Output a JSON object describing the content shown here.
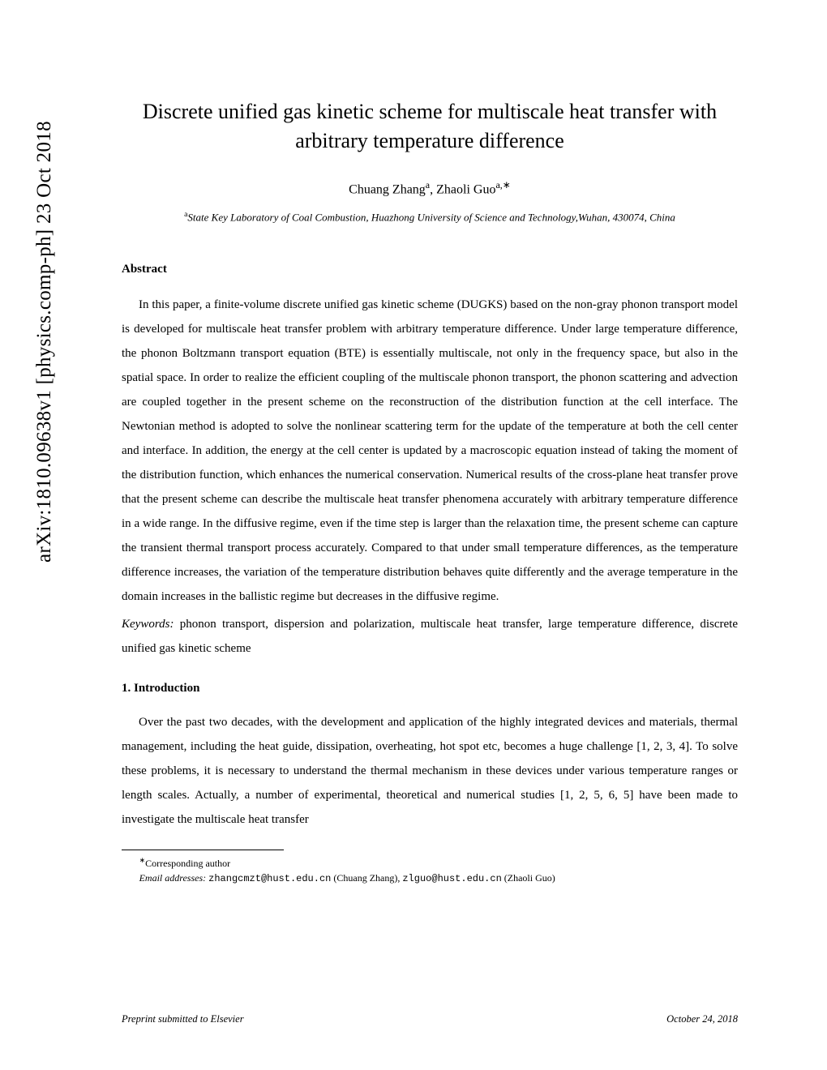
{
  "arxiv": "arXiv:1810.09638v1  [physics.comp-ph]  23 Oct 2018",
  "title": "Discrete unified gas kinetic scheme for multiscale heat transfer with arbitrary temperature difference",
  "authors_prefix": "Chuang Zhang",
  "authors_sup1": "a",
  "authors_mid": ", Zhaoli Guo",
  "authors_sup2": "a,∗",
  "affil_sup": "a",
  "affiliation": "State Key Laboratory of Coal Combustion, Huazhong University of Science and Technology,Wuhan, 430074, China",
  "abstract_heading": "Abstract",
  "abstract": "In this paper, a finite-volume discrete unified gas kinetic scheme (DUGKS) based on the non-gray phonon transport model is developed for multiscale heat transfer problem with arbitrary temperature difference. Under large temperature difference, the phonon Boltzmann transport equation (BTE) is essentially multiscale, not only in the frequency space, but also in the spatial space. In order to realize the efficient coupling of the multiscale phonon transport, the phonon scattering and advection are coupled together in the present scheme on the reconstruction of the distribution function at the cell interface. The Newtonian method is adopted to solve the nonlinear scattering term for the update of the temperature at both the cell center and interface. In addition, the energy at the cell center is updated by a macroscopic equation instead of taking the moment of the distribution function, which enhances the numerical conservation. Numerical results of the cross-plane heat transfer prove that the present scheme can describe the multiscale heat transfer phenomena accurately with arbitrary temperature difference in a wide range. In the diffusive regime, even if the time step is larger than the relaxation time, the present scheme can capture the transient thermal transport process accurately. Compared to that under small temperature differences, as the temperature difference increases, the variation of the temperature distribution behaves quite differently and the average temperature in the domain increases in the ballistic regime but decreases in the diffusive regime.",
  "keywords_label": "Keywords:",
  "keywords": "   phonon transport, dispersion and polarization, multiscale heat transfer, large temperature difference, discrete unified gas kinetic scheme",
  "intro_heading": "1.  Introduction",
  "intro": "Over the past two decades, with the development and application of the highly integrated devices and materials, thermal management, including the heat guide, dissipation, overheating, hot spot etc, becomes a huge challenge [1, 2, 3, 4]. To solve these problems, it is necessary to understand the thermal mechanism in these devices under various temperature ranges or length scales. Actually, a number of experimental, theoretical and numerical studies [1, 2, 5, 6, 5] have been made to investigate the multiscale heat transfer",
  "footnote_marker": "∗",
  "footnote_corresponding": "Corresponding author",
  "email_label": "Email addresses:",
  "email1": "zhangcmzt@hust.edu.cn",
  "email1_name": " (Chuang Zhang), ",
  "email2": "zlguo@hust.edu.cn",
  "email2_name": " (Zhaoli Guo)",
  "footer_left": "Preprint submitted to Elsevier",
  "footer_right": "October 24, 2018"
}
